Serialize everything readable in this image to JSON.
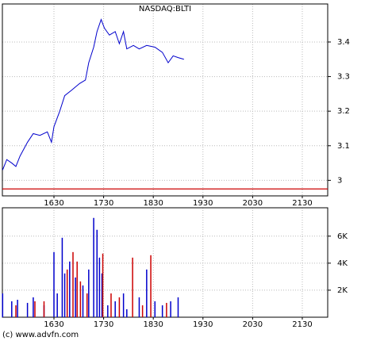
{
  "footer": "(c) www.advfn.com",
  "chart_data": [
    {
      "type": "line",
      "title": "NASDAQ:BLTI",
      "x": [
        928,
        933,
        939,
        944,
        949,
        958,
        965,
        973,
        982,
        987,
        990,
        997,
        1003,
        1011,
        1016,
        1021,
        1028,
        1032,
        1038,
        1042,
        1047,
        1051,
        1057,
        1064,
        1069,
        1074,
        1078,
        1086,
        1093,
        1102,
        1112,
        1121,
        1128,
        1134,
        1140,
        1147
      ],
      "series": [
        {
          "color": "#0000cc",
          "values": [
            3.03,
            3.06,
            3.05,
            3.04,
            3.07,
            3.11,
            3.135,
            3.13,
            3.14,
            3.11,
            3.155,
            3.2,
            3.245,
            3.26,
            3.27,
            3.28,
            3.29,
            3.34,
            3.385,
            3.43,
            3.465,
            3.44,
            3.42,
            3.43,
            3.395,
            3.43,
            3.38,
            3.39,
            3.38,
            3.39,
            3.385,
            3.37,
            3.34,
            3.36,
            3.355,
            3.35
          ]
        }
      ],
      "reference_line": {
        "value": 2.975,
        "color": "#cc0000"
      },
      "xlim": [
        927.7,
        1320.7
      ],
      "xticks": [
        {
          "value": 990,
          "label": "1630"
        },
        {
          "value": 1050,
          "label": "1730"
        },
        {
          "value": 1110,
          "label": "1830"
        },
        {
          "value": 1170,
          "label": "1930"
        },
        {
          "value": 1230,
          "label": "2030"
        },
        {
          "value": 1290,
          "label": "2130"
        }
      ],
      "ylim": [
        2.955,
        3.51
      ],
      "yticks": [
        3,
        3.1,
        3.2,
        3.3,
        3.4
      ],
      "grid": true
    },
    {
      "type": "bar",
      "series": [
        {
          "color": "#0000cc",
          "x": [
            928,
            939,
            946,
            958,
            965,
            978,
            990,
            994,
            1000,
            1003,
            1009,
            1016,
            1025,
            1032,
            1038,
            1042,
            1045,
            1048,
            1055,
            1064,
            1074,
            1078,
            1093,
            1102,
            1112,
            1121,
            1131,
            1140
          ],
          "values": [
            1760,
            1180,
            1290,
            1060,
            1470,
            880,
            4820,
            1760,
            5880,
            3240,
            4120,
            2940,
            2350,
            3530,
            7350,
            6470,
            4410,
            3240,
            880,
            1180,
            1760,
            590,
            1470,
            3530,
            1180,
            880,
            1180,
            1470
          ]
        },
        {
          "color": "#cc0000",
          "x": [
            944,
            967,
            978,
            1006,
            1013,
            1018,
            1022,
            1030,
            1049,
            1059,
            1069,
            1085,
            1097,
            1107,
            1126
          ],
          "values": [
            880,
            1180,
            1180,
            3530,
            4820,
            4120,
            2650,
            1760,
            4710,
            1760,
            1470,
            4410,
            880,
            4590,
            1060
          ]
        }
      ],
      "xlim": [
        927.7,
        1320.7
      ],
      "xticks": [
        {
          "value": 990,
          "label": "1630"
        },
        {
          "value": 1050,
          "label": "1730"
        },
        {
          "value": 1110,
          "label": "1830"
        },
        {
          "value": 1170,
          "label": "1930"
        },
        {
          "value": 1230,
          "label": "2030"
        },
        {
          "value": 1290,
          "label": "2130"
        }
      ],
      "ylim": [
        0,
        8100
      ],
      "yticks": [
        {
          "value": 2000,
          "label": "2K"
        },
        {
          "value": 4000,
          "label": "4K"
        },
        {
          "value": 6000,
          "label": "6K"
        }
      ],
      "grid": true
    }
  ]
}
